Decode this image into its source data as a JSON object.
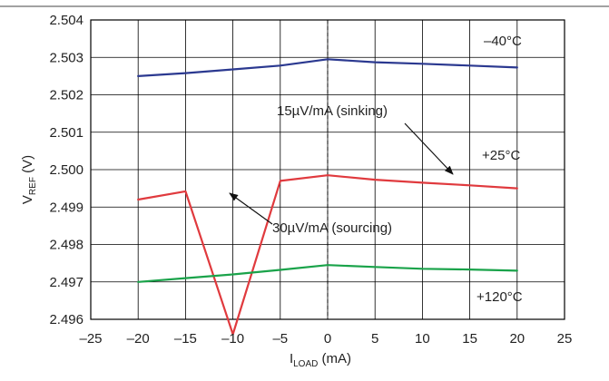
{
  "chart_data": {
    "type": "line",
    "title": "",
    "xlabel": {
      "main": "I",
      "sub": "LOAD",
      "unit": " (mA)"
    },
    "ylabel": {
      "main": "V",
      "sub": "REF",
      "unit": " (V)"
    },
    "xlim": [
      -25,
      25
    ],
    "ylim": [
      2.496,
      2.504
    ],
    "x_ticks": [
      "–25",
      "–20",
      "–15",
      "–10",
      "–5",
      "0",
      "5",
      "10",
      "15",
      "20",
      "25"
    ],
    "y_ticks": [
      "2.496",
      "2.497",
      "2.498",
      "2.499",
      "2.500",
      "2.501",
      "2.502",
      "2.503",
      "2.504"
    ],
    "grid": true,
    "series": [
      {
        "name": "–40°C",
        "color": "#2b3990",
        "x": [
          -20,
          -15,
          -10,
          -5,
          0,
          5,
          10,
          15,
          20
        ],
        "y": [
          2.5025,
          2.50258,
          2.50268,
          2.50278,
          2.50295,
          2.50287,
          2.50283,
          2.50278,
          2.50273
        ]
      },
      {
        "name": "+25°C",
        "color": "#e03a3e",
        "x": [
          -20,
          -15,
          -10,
          -5,
          0,
          5,
          10,
          15,
          20
        ],
        "y": [
          2.4992,
          2.49942,
          2.4956,
          2.4997,
          2.49985,
          2.49973,
          2.49965,
          2.49958,
          2.4995
        ]
      },
      {
        "name": "+120°C",
        "color": "#1aa34a",
        "x": [
          -20,
          -15,
          -10,
          -5,
          0,
          5,
          10,
          15,
          20
        ],
        "y": [
          2.497,
          2.4971,
          2.4972,
          2.49732,
          2.49745,
          2.4974,
          2.49735,
          2.49733,
          2.4973
        ]
      }
    ],
    "annotations": {
      "sinking": "15µV/mA (sinking)",
      "sourcing": "30µV/mA (sourcing)"
    }
  }
}
